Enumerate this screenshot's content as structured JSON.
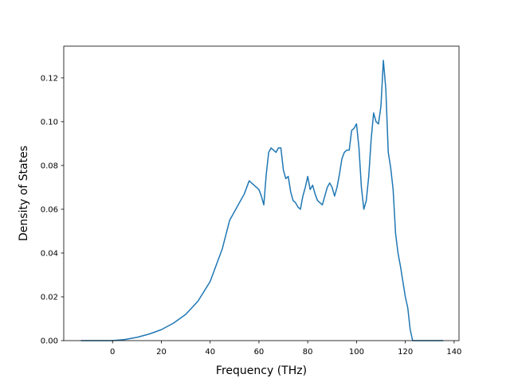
{
  "chart_data": {
    "type": "line",
    "title": "",
    "xlabel": "Frequency (THz)",
    "ylabel": "Density of States",
    "xlim": [
      -20,
      142
    ],
    "ylim": [
      0,
      0.1345
    ],
    "xticks": [
      0,
      20,
      40,
      60,
      80,
      100,
      120,
      140
    ],
    "xtick_labels": [
      "0",
      "20",
      "40",
      "60",
      "80",
      "100",
      "120",
      "140"
    ],
    "yticks": [
      0.0,
      0.02,
      0.04,
      0.06,
      0.08,
      0.1,
      0.12
    ],
    "ytick_labels": [
      "0.00",
      "0.02",
      "0.04",
      "0.06",
      "0.08",
      "0.10",
      "0.12"
    ],
    "grid": false,
    "legend": "none",
    "series": [
      {
        "color": "#1f77b4",
        "x": [
          -13,
          0,
          5,
          10,
          15,
          20,
          25,
          30,
          35,
          40,
          45,
          48,
          50,
          52,
          54,
          56,
          58,
          60,
          61,
          62,
          63,
          64,
          65,
          66,
          67,
          68,
          69,
          70,
          71,
          72,
          73,
          74,
          75,
          76,
          77,
          78,
          79,
          80,
          81,
          82,
          83,
          84,
          85,
          86,
          87,
          88,
          89,
          90,
          91,
          92,
          93,
          94,
          95,
          96,
          97,
          98,
          99,
          100,
          101,
          102,
          103,
          104,
          105,
          106,
          107,
          108,
          109,
          110,
          111,
          112,
          113,
          114,
          115,
          116,
          117,
          118,
          119,
          120,
          121,
          122,
          123,
          124,
          130,
          135.5
        ],
        "y": [
          0.0,
          0.0,
          0.0005,
          0.0015,
          0.003,
          0.005,
          0.008,
          0.012,
          0.018,
          0.027,
          0.042,
          0.055,
          0.059,
          0.063,
          0.067,
          0.073,
          0.071,
          0.069,
          0.066,
          0.062,
          0.076,
          0.086,
          0.088,
          0.087,
          0.086,
          0.088,
          0.088,
          0.078,
          0.074,
          0.075,
          0.068,
          0.064,
          0.063,
          0.061,
          0.06,
          0.066,
          0.07,
          0.075,
          0.069,
          0.071,
          0.067,
          0.064,
          0.063,
          0.062,
          0.066,
          0.07,
          0.072,
          0.07,
          0.066,
          0.07,
          0.076,
          0.083,
          0.086,
          0.087,
          0.087,
          0.096,
          0.097,
          0.099,
          0.088,
          0.07,
          0.06,
          0.064,
          0.075,
          0.092,
          0.104,
          0.1,
          0.099,
          0.107,
          0.128,
          0.115,
          0.086,
          0.079,
          0.069,
          0.049,
          0.04,
          0.034,
          0.027,
          0.02,
          0.015,
          0.005,
          0.0,
          0.0,
          0.0,
          0.0
        ]
      }
    ]
  }
}
